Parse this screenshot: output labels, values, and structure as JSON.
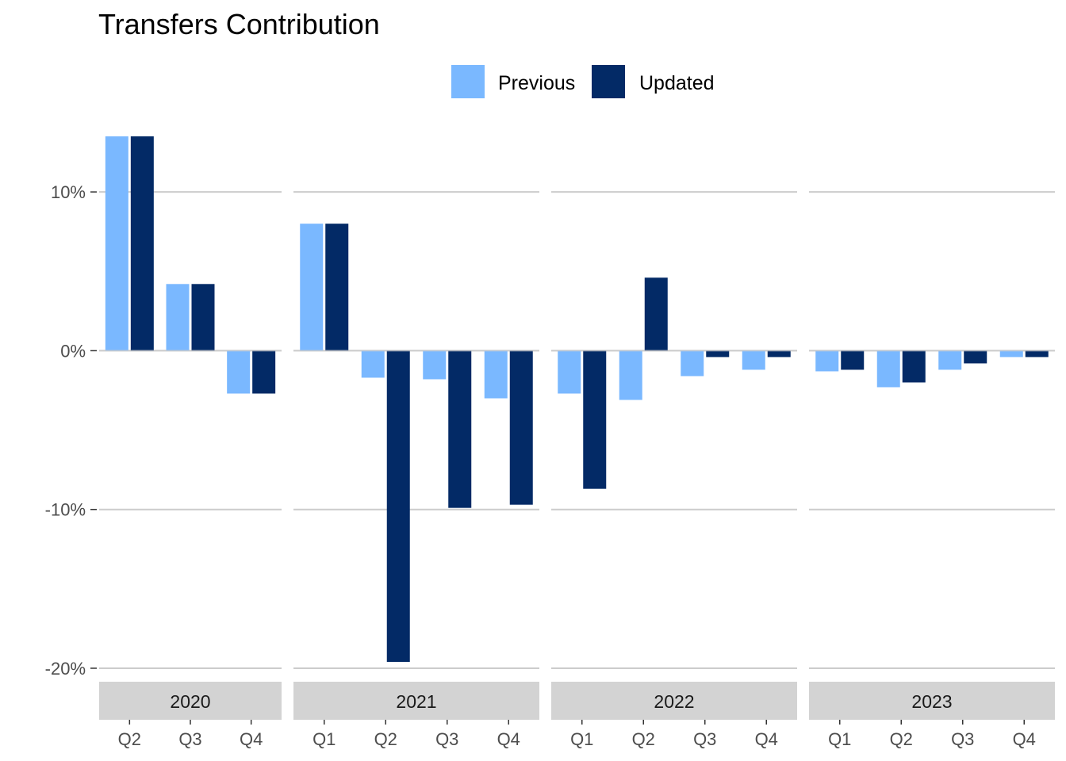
{
  "chart_data": {
    "type": "bar",
    "title": "Transfers Contribution",
    "xlabel": "",
    "ylabel": "",
    "ylim": [
      -20.6,
      14.1
    ],
    "yticks": [
      10,
      0,
      -10,
      -20
    ],
    "ytick_labels": [
      "10%",
      "0%",
      "-10%",
      "-20%"
    ],
    "legend": {
      "position": "top",
      "entries": [
        "Previous",
        "Updated"
      ]
    },
    "colors": {
      "Previous": "#7ab8ff",
      "Updated": "#032a66",
      "strip": "#d3d3d3",
      "grid": "#cccccc"
    },
    "facets": [
      {
        "label": "2020",
        "categories": [
          "Q2",
          "Q3",
          "Q4"
        ],
        "series": [
          {
            "name": "Previous",
            "values": [
              13.5,
              4.2,
              -2.7
            ]
          },
          {
            "name": "Updated",
            "values": [
              13.5,
              4.2,
              -2.7
            ]
          }
        ]
      },
      {
        "label": "2021",
        "categories": [
          "Q1",
          "Q2",
          "Q3",
          "Q4"
        ],
        "series": [
          {
            "name": "Previous",
            "values": [
              8.0,
              -1.7,
              -1.8,
              -3.0
            ]
          },
          {
            "name": "Updated",
            "values": [
              8.0,
              -19.6,
              -9.9,
              -9.7
            ]
          }
        ]
      },
      {
        "label": "2022",
        "categories": [
          "Q1",
          "Q2",
          "Q3",
          "Q4"
        ],
        "series": [
          {
            "name": "Previous",
            "values": [
              -2.7,
              -3.1,
              -1.6,
              -1.2
            ]
          },
          {
            "name": "Updated",
            "values": [
              -8.7,
              4.6,
              -0.4,
              -0.4
            ]
          }
        ]
      },
      {
        "label": "2023",
        "categories": [
          "Q1",
          "Q2",
          "Q3",
          "Q4"
        ],
        "series": [
          {
            "name": "Previous",
            "values": [
              -1.3,
              -2.3,
              -1.2,
              -0.4
            ]
          },
          {
            "name": "Updated",
            "values": [
              -1.2,
              -2.0,
              -0.8,
              -0.4
            ]
          }
        ]
      }
    ]
  }
}
